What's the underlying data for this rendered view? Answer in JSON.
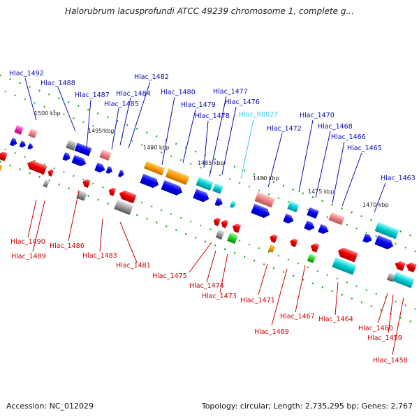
{
  "title": "Halorubrum lacusprofundi ATCC 49239 chromosome 1, complete g...",
  "footer": {
    "accession": "Accession: NC_012029",
    "summary": "Topology: circular; Length: 2,735,295 bp; Genes: 2,767"
  },
  "colors": {
    "forward_label": "#0a0ab4",
    "reverse_label": "#cc0000",
    "rna_label": "#33ccee",
    "backbone": "#808080"
  },
  "scale_ticks": [
    "1500 kbp",
    "1495 kbp",
    "1490 kbp",
    "1485 kbp",
    "1480 kbp",
    "1475 kbp",
    "1470 kbp"
  ],
  "forward_labels": [
    "Hlac_1492",
    "Hlac_1488",
    "Hlac_1487",
    "Hlac_1484",
    "Hlac_1485",
    "Hlac_1482",
    "Hlac_1480",
    "Hlac_1479",
    "Hlac_1478",
    "Hlac_1477",
    "Hlac_1476",
    "Hlac_1472",
    "Hlac_1470",
    "Hlac_1468",
    "Hlac_1466",
    "Hlac_1465",
    "Hlac_1463"
  ],
  "rna_labels": [
    "Hlac_R0027"
  ],
  "reverse_labels": [
    "Hlac_1490",
    "Hlac_1489",
    "Hlac_1486",
    "Hlac_1483",
    "Hlac_1481",
    "Hlac_1475",
    "Hlac_1474",
    "Hlac_1473",
    "Hlac_1471",
    "Hlac_1469",
    "Hlac_1467",
    "Hlac_1464",
    "Hlac_1460",
    "Hlac_1459",
    "Hlac_1458"
  ]
}
